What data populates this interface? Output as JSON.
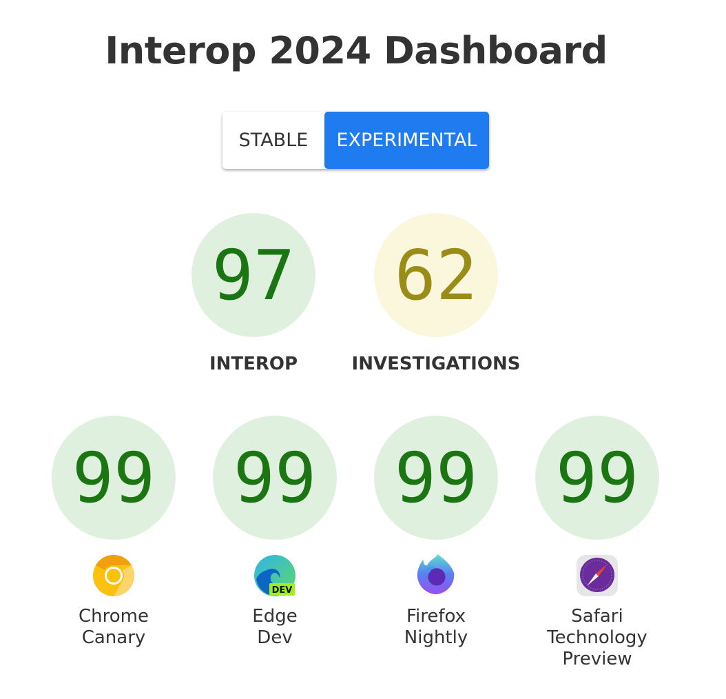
{
  "header": {
    "title": "Interop 2024 Dashboard"
  },
  "toggle": {
    "stable_label": "STABLE",
    "experimental_label": "EXPERIMENTAL",
    "selected": "EXPERIMENTAL",
    "accent": "#1f7bf0"
  },
  "summary": [
    {
      "score": "97",
      "label": "INTEROP",
      "color": "green"
    },
    {
      "score": "62",
      "label": "INVESTIGATIONS",
      "color": "yellow"
    }
  ],
  "browsers": [
    {
      "score": "99",
      "name_line1": "Chrome",
      "name_line2": "Canary",
      "name_line3": "",
      "icon": "chrome-canary-icon"
    },
    {
      "score": "99",
      "name_line1": "Edge",
      "name_line2": "Dev",
      "name_line3": "",
      "icon": "edge-dev-icon",
      "badge": "DEV"
    },
    {
      "score": "99",
      "name_line1": "Firefox",
      "name_line2": "Nightly",
      "name_line3": "",
      "icon": "firefox-nightly-icon"
    },
    {
      "score": "99",
      "name_line1": "Safari",
      "name_line2": "Technology",
      "name_line3": "Preview",
      "icon": "safari-technology-preview-icon"
    }
  ]
}
